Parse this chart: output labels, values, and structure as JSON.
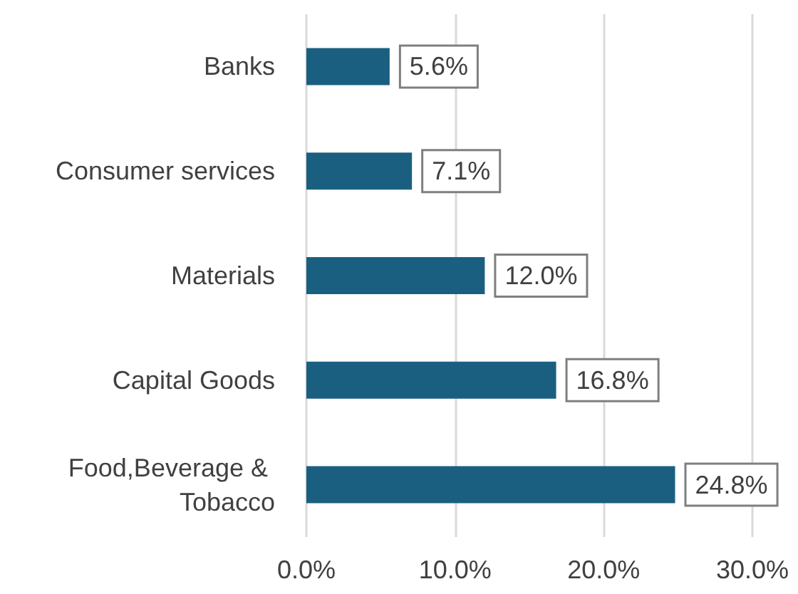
{
  "chart_data": {
    "type": "bar",
    "orientation": "horizontal",
    "categories": [
      "Banks",
      "Consumer services",
      "Materials",
      "Capital Goods",
      "Food,Beverage & Tobacco"
    ],
    "values": [
      5.6,
      7.1,
      12.0,
      16.8,
      24.8
    ],
    "color": "#1a5f80",
    "value_labels": [
      "5.6%",
      "7.1%",
      "12.0%",
      "16.8%",
      "24.8%"
    ],
    "xlim": [
      0,
      30
    ],
    "xticks": [
      {
        "value": 0,
        "label": "0.0%"
      },
      {
        "value": 10,
        "label": "10.0%"
      },
      {
        "value": 20,
        "label": "20.0%"
      },
      {
        "value": 30,
        "label": "30.0%"
      }
    ],
    "grid": "x"
  }
}
